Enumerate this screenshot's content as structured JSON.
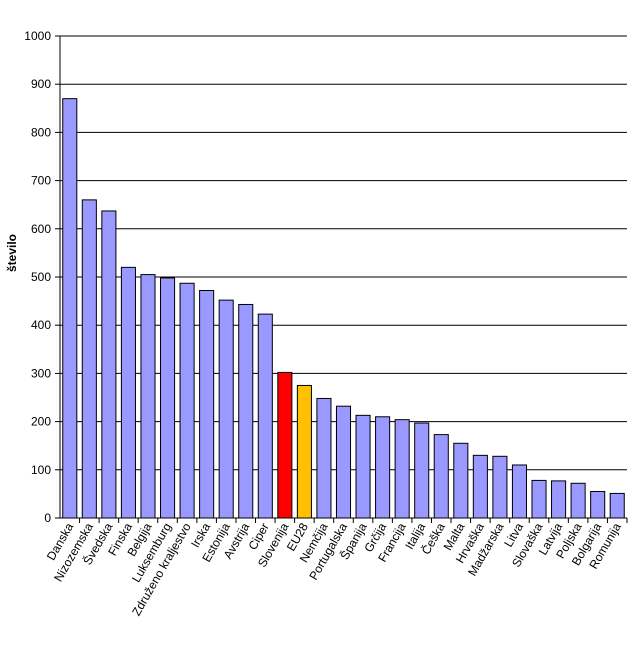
{
  "chart_data": {
    "type": "bar",
    "title": "",
    "xlabel": "",
    "ylabel": "število",
    "ylim": [
      0,
      1000
    ],
    "yticks": [
      0,
      100,
      200,
      300,
      400,
      500,
      600,
      700,
      800,
      900,
      1000
    ],
    "grid": true,
    "categories": [
      "Danska",
      "Nizozemska",
      "Švedska",
      "Finska",
      "Belgija",
      "Luksemburg",
      "Združeno kraljestvo",
      "Irska",
      "Estonija",
      "Avstrija",
      "Ciper",
      "Slovenija",
      "EU28",
      "Nemčija",
      "Portugalska",
      "Španija",
      "Grčija",
      "Francija",
      "Italija",
      "Češka",
      "Malta",
      "Hrvaška",
      "Madžarska",
      "Litva",
      "Slovaška",
      "Latvija",
      "Poljska",
      "Bolgarija",
      "Romunija"
    ],
    "values": [
      870,
      660,
      637,
      520,
      505,
      498,
      487,
      472,
      452,
      443,
      423,
      302,
      275,
      248,
      232,
      213,
      210,
      204,
      197,
      173,
      155,
      130,
      128,
      110,
      78,
      77,
      72,
      55,
      51
    ],
    "colors": {
      "default": "#9999ff",
      "Slovenija": "#ff0000",
      "EU28": "#ffc000"
    }
  }
}
